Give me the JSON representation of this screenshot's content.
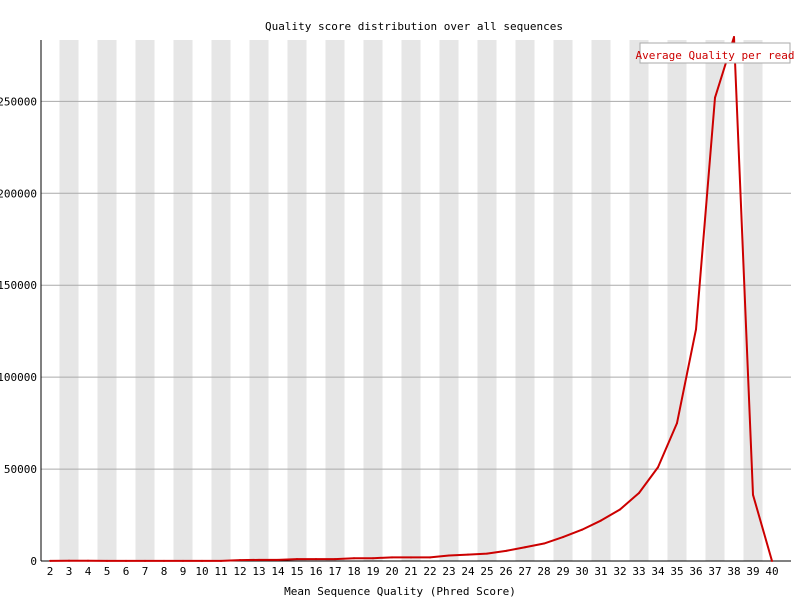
{
  "chart_data": {
    "type": "line",
    "title": "Quality score distribution over all sequences",
    "xlabel": "Mean Sequence Quality (Phred Score)",
    "ylabel": "",
    "categories": [
      2,
      3,
      4,
      5,
      6,
      7,
      8,
      9,
      10,
      11,
      12,
      13,
      14,
      15,
      16,
      17,
      18,
      19,
      20,
      21,
      22,
      23,
      24,
      25,
      26,
      27,
      28,
      29,
      30,
      31,
      32,
      33,
      34,
      35,
      36,
      37,
      38,
      39,
      40
    ],
    "series": [
      {
        "name": "Average Quality per read",
        "color": "#cc0000",
        "values": [
          100,
          150,
          120,
          100,
          100,
          100,
          100,
          100,
          100,
          100,
          500,
          600,
          600,
          1000,
          1000,
          1000,
          1500,
          1500,
          2000,
          2000,
          2000,
          3000,
          3500,
          4000,
          5500,
          7500,
          9500,
          13000,
          17000,
          22000,
          28000,
          37000,
          51000,
          75000,
          126000,
          252000,
          285000,
          36000,
          0
        ]
      }
    ],
    "ylim": [
      0,
      285000
    ],
    "yticks": [
      0,
      50000,
      100000,
      150000,
      200000,
      250000
    ],
    "ytick_labels": [
      "0",
      "50000",
      "100000",
      "150000",
      "200000",
      "250000"
    ],
    "grid": true,
    "legend": "top-right",
    "colors": {
      "line": "#cc0000",
      "band": "#e6e6e6",
      "gridline": "#aaaaaa",
      "axis": "#000000"
    }
  }
}
